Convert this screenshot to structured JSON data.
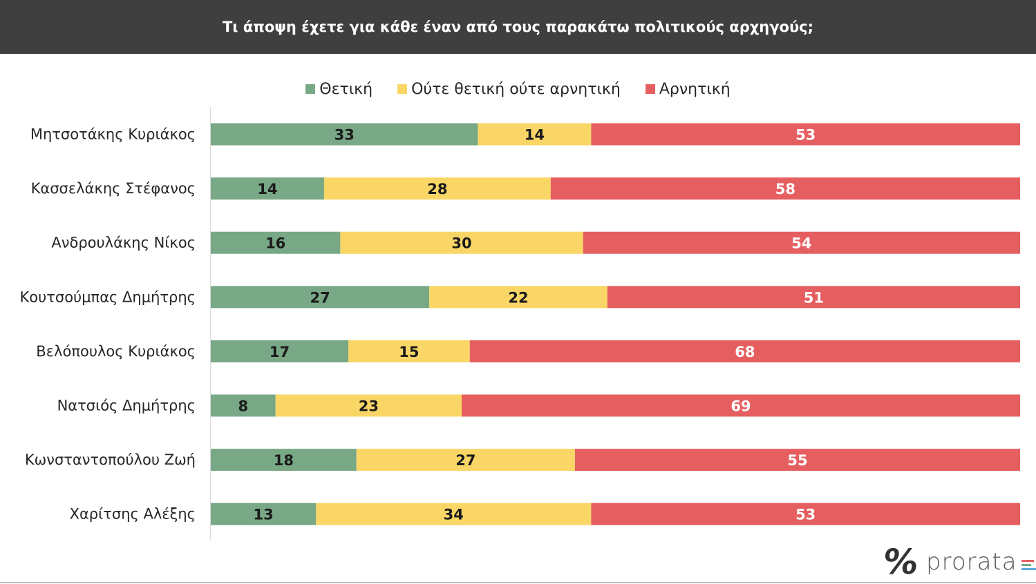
{
  "title": "Τι άποψη έχετε για κάθε έναν από τους παρακάτω πολιτικούς αρχηγούς;",
  "logo": {
    "text": "prorata",
    "symbol": "%"
  },
  "colors": {
    "positive": "#78a886",
    "neutral": "#f9d666",
    "negative": "#e65f60",
    "title_bg": "#3f3f3f"
  },
  "chart_data": {
    "type": "bar",
    "orientation": "horizontal",
    "stacked": true,
    "categories": [
      "Μητσοτάκης Κυριάκος",
      "Κασσελάκης Στέφανος",
      "Ανδρουλάκης Νίκος",
      "Κουτσούμπας Δημήτρης",
      "Βελόπουλος Κυριάκος",
      "Νατσιός Δημήτρης",
      "Κωνσταντοπούλου Ζωή",
      "Χαρίτσης Αλέξης"
    ],
    "series": [
      {
        "name": "Θετική",
        "color": "#78a886",
        "label_color": "#1a1a1a",
        "values": [
          33,
          14,
          16,
          27,
          17,
          8,
          18,
          13
        ]
      },
      {
        "name": "Ούτε θετική ούτε αρνητική",
        "color": "#f9d666",
        "label_color": "#1a1a1a",
        "values": [
          14,
          28,
          30,
          22,
          15,
          23,
          27,
          34
        ]
      },
      {
        "name": "Αρνητική",
        "color": "#e65f60",
        "label_color": "#ffffff",
        "values": [
          53,
          58,
          54,
          51,
          68,
          69,
          55,
          53
        ]
      }
    ],
    "legend_position": "top",
    "grid": false
  }
}
